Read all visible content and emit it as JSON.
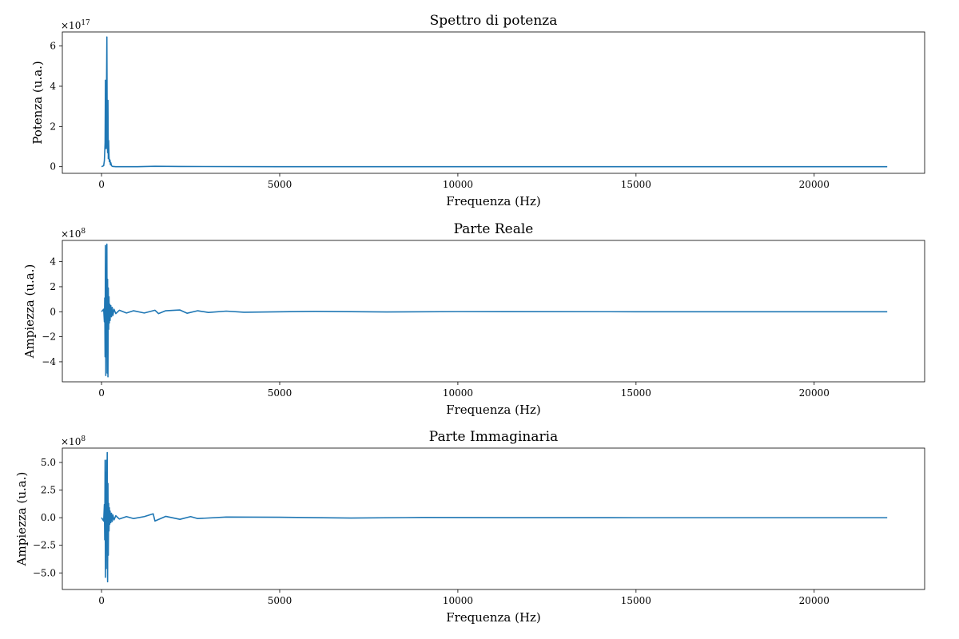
{
  "chart_data": [
    {
      "type": "line",
      "title": "Spettro di potenza",
      "xlabel": "Frequenza (Hz)",
      "ylabel": "Potenza (u.a.)",
      "offset_label": "×10",
      "offset_exp": "17",
      "xlim": [
        -1100,
        23100
      ],
      "ylim": [
        -0.33,
        6.7
      ],
      "xticks": [
        0,
        5000,
        10000,
        15000,
        20000
      ],
      "xtick_labels": [
        "0",
        "5000",
        "10000",
        "15000",
        "20000"
      ],
      "yticks": [
        0,
        2,
        4,
        6
      ],
      "ytick_labels": [
        "0",
        "2",
        "4",
        "6"
      ],
      "line_color": "#1f77b4",
      "grid": false,
      "series": [
        {
          "x": [
            0,
            60,
            80,
            100,
            110,
            120,
            130,
            140,
            150,
            160,
            170,
            180,
            190,
            200,
            210,
            220,
            230,
            240,
            250,
            260,
            280,
            300,
            320,
            340,
            400,
            500,
            700,
            1000,
            1500,
            2200,
            5000,
            10000,
            22050
          ],
          "y": [
            0,
            0.05,
            0.3,
            1.2,
            4.3,
            2.1,
            0.9,
            3.9,
            6.45,
            1.5,
            0.7,
            3.3,
            0.4,
            1.3,
            0.5,
            0.25,
            0.35,
            0.3,
            0.1,
            0.2,
            0.05,
            0.02,
            0.01,
            0.01,
            0,
            0,
            0,
            0,
            0.02,
            0.01,
            0,
            0,
            0
          ]
        }
      ]
    },
    {
      "type": "line",
      "title": "Parte Reale",
      "xlabel": "Frequenza (Hz)",
      "ylabel": "Ampiezza (u.a.)",
      "offset_label": "×10",
      "offset_exp": "8",
      "xlim": [
        -1100,
        23100
      ],
      "ylim": [
        -5.6,
        5.7
      ],
      "xticks": [
        0,
        5000,
        10000,
        15000,
        20000
      ],
      "xtick_labels": [
        "0",
        "5000",
        "10000",
        "15000",
        "20000"
      ],
      "yticks": [
        -4,
        -2,
        0,
        2,
        4
      ],
      "ytick_labels": [
        "−4",
        "−2",
        "0",
        "2",
        "4"
      ],
      "line_color": "#1f77b4",
      "grid": false,
      "series": [
        {
          "x": [
            0,
            60,
            80,
            90,
            100,
            110,
            120,
            130,
            140,
            150,
            160,
            170,
            180,
            190,
            200,
            210,
            220,
            230,
            240,
            260,
            280,
            300,
            320,
            350,
            400,
            500,
            700,
            900,
            1200,
            1500,
            1600,
            1800,
            2200,
            2400,
            2700,
            3000,
            3500,
            4000,
            6000,
            8000,
            10000,
            15000,
            22050
          ],
          "y": [
            0,
            0.2,
            -0.8,
            1.1,
            -3.6,
            5.3,
            -5.1,
            3.3,
            -2.8,
            5.4,
            -4.9,
            2.6,
            -5.2,
            1.9,
            -1.4,
            1.2,
            -0.9,
            0.6,
            -0.7,
            0.5,
            -0.4,
            0.35,
            -0.3,
            0.2,
            -0.15,
            0.12,
            -0.1,
            0.08,
            -0.1,
            0.12,
            -0.15,
            0.08,
            0.14,
            -0.12,
            0.08,
            -0.06,
            0.05,
            -0.04,
            0.03,
            -0.02,
            0.01,
            0,
            0
          ]
        }
      ]
    },
    {
      "type": "line",
      "title": "Parte Immaginaria",
      "xlabel": "Frequenza (Hz)",
      "ylabel": "Ampiezza (u.a.)",
      "offset_label": "×10",
      "offset_exp": "8",
      "xlim": [
        -1100,
        23100
      ],
      "ylim": [
        -6.5,
        6.3
      ],
      "xticks": [
        0,
        5000,
        10000,
        15000,
        20000
      ],
      "xtick_labels": [
        "0",
        "5000",
        "10000",
        "15000",
        "20000"
      ],
      "yticks": [
        -5.0,
        -2.5,
        0.0,
        2.5,
        5.0
      ],
      "ytick_labels": [
        "−5.0",
        "−2.5",
        "0.0",
        "2.5",
        "5.0"
      ],
      "line_color": "#1f77b4",
      "grid": false,
      "series": [
        {
          "x": [
            0,
            60,
            80,
            90,
            100,
            110,
            120,
            130,
            140,
            150,
            160,
            170,
            180,
            190,
            200,
            210,
            220,
            230,
            240,
            260,
            280,
            300,
            320,
            350,
            400,
            500,
            700,
            900,
            1200,
            1450,
            1500,
            1800,
            2200,
            2500,
            2700,
            3500,
            5000,
            7000,
            9000,
            10200,
            15000,
            22050
          ],
          "y": [
            0,
            -0.3,
            1.2,
            -2.0,
            5.2,
            -5.4,
            4.1,
            -4.6,
            5.2,
            -1.8,
            5.9,
            -5.8,
            3.1,
            -3.4,
            1.3,
            -1.2,
            0.9,
            -0.6,
            0.6,
            -0.45,
            0.4,
            -0.35,
            0.25,
            -0.2,
            0.18,
            -0.12,
            0.1,
            -0.08,
            0.1,
            0.35,
            -0.3,
            0.12,
            -0.15,
            0.1,
            -0.08,
            0.06,
            0.04,
            -0.03,
            0.02,
            0.01,
            0,
            0
          ]
        }
      ]
    }
  ]
}
